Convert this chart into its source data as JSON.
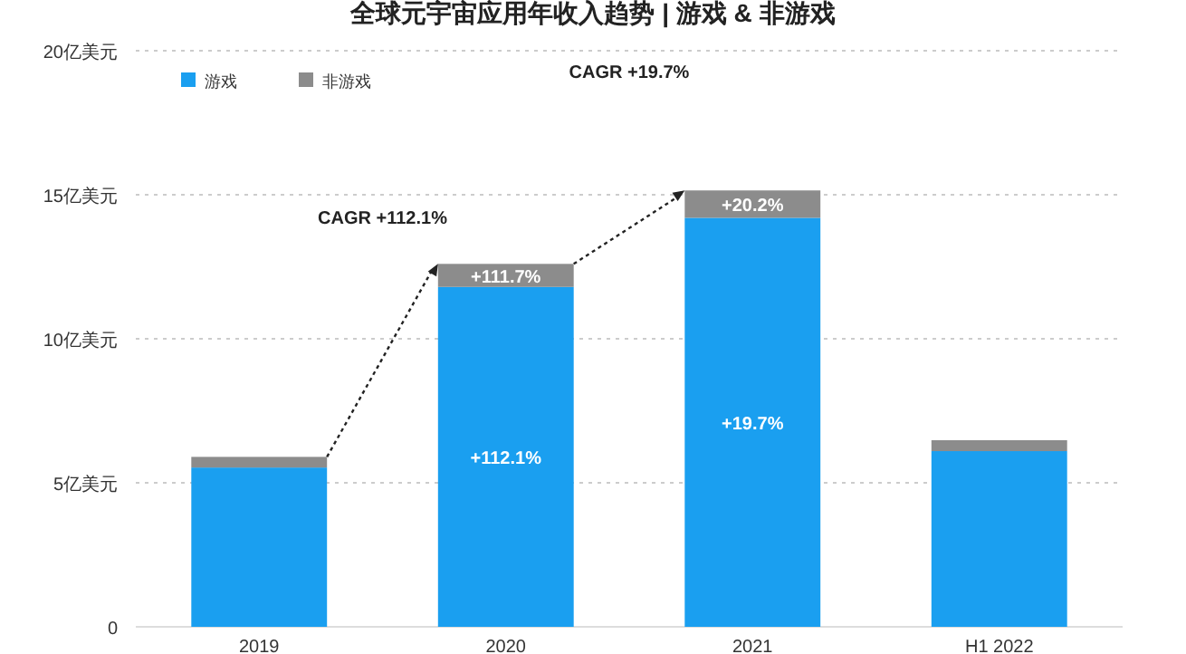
{
  "chart_data": {
    "type": "bar",
    "title": "全球元宇宙应用年收入趋势 | 游戏 & 非游戏",
    "categories": [
      "2019",
      "2020",
      "2021",
      "H1 2022"
    ],
    "stacked": true,
    "series": [
      {
        "name": "游戏",
        "color": "#1a9ff0",
        "values": [
          5.53,
          11.8,
          14.2,
          6.1
        ]
      },
      {
        "name": "非游戏",
        "color": "#8c8c8c",
        "values": [
          0.37,
          0.8,
          0.95,
          0.38
        ]
      }
    ],
    "ylim": [
      0,
      20
    ],
    "yticks": [
      0,
      {
        "value": 5,
        "label": "5亿美元"
      },
      {
        "value": 10,
        "label": "10亿美元"
      },
      {
        "value": 15,
        "label": "15亿美元"
      },
      {
        "value": 20,
        "label": "20亿美元"
      }
    ],
    "grid": "y",
    "legend": "top left",
    "annotations": [
      "CAGR +112.1%",
      "CAGR +19.7%",
      "+112.1%",
      "+19.7%",
      "+111.7%",
      "+20.2%"
    ]
  }
}
